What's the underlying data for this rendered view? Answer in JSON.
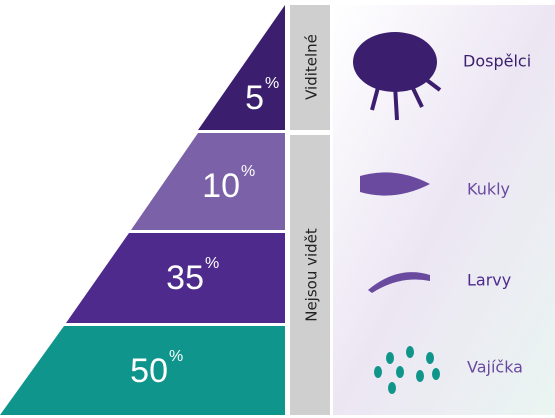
{
  "tiers": [
    {
      "number": "5",
      "unit": "%",
      "stage": "Dospělci"
    },
    {
      "number": "10",
      "unit": "%",
      "stage": "Kukly"
    },
    {
      "number": "35",
      "unit": "%",
      "stage": "Larvy"
    },
    {
      "number": "50",
      "unit": "%",
      "stage": "Vajíčka"
    }
  ],
  "visibility": {
    "visible": "Viditelné",
    "hidden": "Nejsou vidět"
  }
}
